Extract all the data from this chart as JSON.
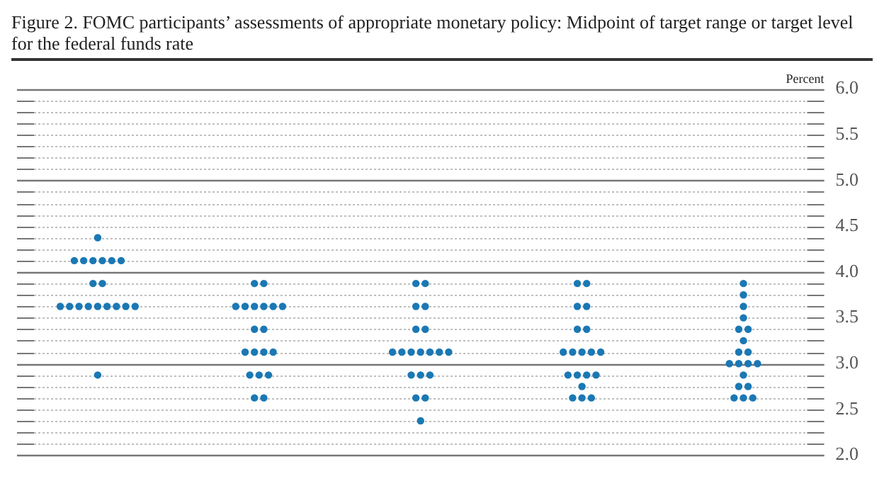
{
  "chart_data": {
    "type": "scatter",
    "title": "Figure 2. FOMC participants’ assessments of appropriate monetary policy: Midpoint of target range or target level for the federal funds rate",
    "ylabel": "Percent",
    "categories": [
      null,
      null,
      null,
      null,
      null
    ],
    "series": [
      {
        "color": "#1a78b4",
        "values": [
          4.375,
          3.875,
          3.875,
          3.875,
          3.875
        ]
      },
      {
        "color": "#1a78b4",
        "values": [
          4.125,
          3.875,
          3.875,
          3.875,
          3.75
        ]
      },
      {
        "color": "#1a78b4",
        "values": [
          4.125,
          3.625,
          3.625,
          3.625,
          3.625
        ]
      },
      {
        "color": "#1a78b4",
        "values": [
          4.125,
          3.625,
          3.625,
          3.625,
          3.5
        ]
      },
      {
        "color": "#1a78b4",
        "values": [
          4.125,
          3.625,
          3.375,
          3.375,
          3.375
        ]
      },
      {
        "color": "#1a78b4",
        "values": [
          4.125,
          3.625,
          3.375,
          3.375,
          3.375
        ]
      },
      {
        "color": "#1a78b4",
        "values": [
          4.125,
          3.625,
          3.125,
          3.125,
          3.25
        ]
      },
      {
        "color": "#1a78b4",
        "values": [
          3.875,
          3.625,
          3.125,
          3.125,
          3.125
        ]
      },
      {
        "color": "#1a78b4",
        "values": [
          3.875,
          3.375,
          3.125,
          3.125,
          3.125
        ]
      },
      {
        "color": "#1a78b4",
        "values": [
          3.625,
          3.375,
          3.125,
          3.125,
          3.0
        ]
      },
      {
        "color": "#1a78b4",
        "values": [
          3.625,
          3.125,
          3.125,
          3.125,
          3.0
        ]
      },
      {
        "color": "#1a78b4",
        "values": [
          3.625,
          3.125,
          3.125,
          2.875,
          3.0
        ]
      },
      {
        "color": "#1a78b4",
        "values": [
          3.625,
          3.125,
          3.125,
          2.875,
          3.0
        ]
      },
      {
        "color": "#1a78b4",
        "values": [
          3.625,
          3.125,
          2.875,
          2.875,
          2.875
        ]
      },
      {
        "color": "#1a78b4",
        "values": [
          3.625,
          2.875,
          2.875,
          2.875,
          2.75
        ]
      },
      {
        "color": "#1a78b4",
        "values": [
          3.625,
          2.875,
          2.875,
          2.75,
          2.75
        ]
      },
      {
        "color": "#1a78b4",
        "values": [
          3.625,
          2.875,
          2.625,
          2.625,
          2.625
        ]
      },
      {
        "color": "#1a78b4",
        "values": [
          3.625,
          2.625,
          2.625,
          2.625,
          2.625
        ]
      },
      {
        "color": "#1a78b4",
        "values": [
          2.875,
          2.625,
          2.375,
          2.625,
          2.625
        ]
      }
    ],
    "ylim": [
      2.0,
      6.0
    ],
    "yticks": [
      {
        "value": 2,
        "label": "2.0"
      },
      {
        "value": 2.125,
        "label": null
      },
      {
        "value": 2.25,
        "label": null
      },
      {
        "value": 2.375,
        "label": null
      },
      2.5,
      {
        "value": 2.625,
        "label": null
      },
      {
        "value": 2.75,
        "label": null
      },
      {
        "value": 2.875,
        "label": null
      },
      {
        "value": 3,
        "label": "3.0"
      },
      {
        "value": 3.125,
        "label": null
      },
      {
        "value": 3.25,
        "label": null
      },
      {
        "value": 3.375,
        "label": null
      },
      3.5,
      {
        "value": 3.625,
        "label": null
      },
      {
        "value": 3.75,
        "label": null
      },
      {
        "value": 3.875,
        "label": null
      },
      {
        "value": 4,
        "label": "4.0"
      },
      {
        "value": 4.125,
        "label": null
      },
      {
        "value": 4.25,
        "label": null
      },
      {
        "value": 4.375,
        "label": null
      },
      4.5,
      {
        "value": 4.625,
        "label": null
      },
      {
        "value": 4.75,
        "label": null
      },
      {
        "value": 4.875,
        "label": null
      },
      {
        "value": 5,
        "label": "5.0"
      },
      {
        "value": 5.125,
        "label": null
      },
      {
        "value": 5.25,
        "label": null
      },
      {
        "value": 5.375,
        "label": null
      },
      5.5,
      {
        "value": 5.625,
        "label": null
      },
      {
        "value": 5.75,
        "label": null
      },
      {
        "value": 5.875,
        "label": null
      },
      {
        "value": 6,
        "label": "6.0"
      }
    ],
    "grid": true,
    "marker": "circle",
    "legend": false
  }
}
